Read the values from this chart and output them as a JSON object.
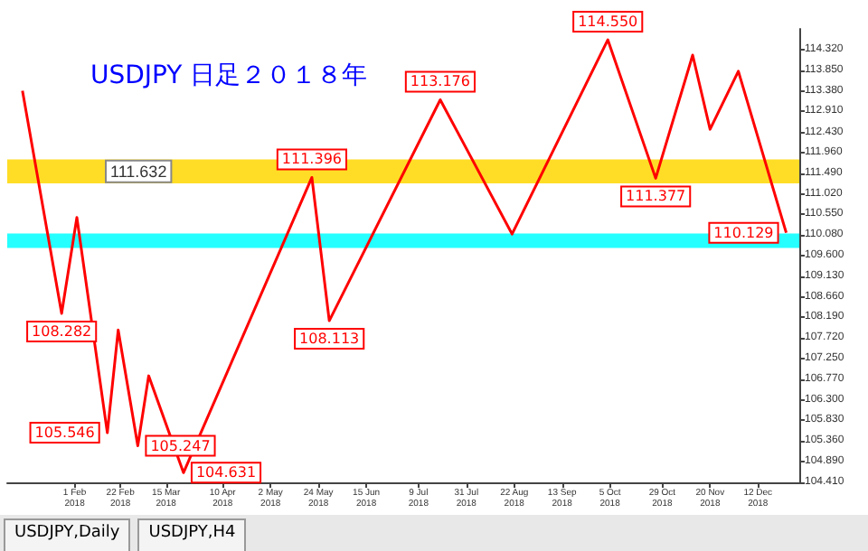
{
  "chart_data": {
    "type": "line",
    "title": "USDJPY 日足２０１８年",
    "annotations": [
      "USDJPY,Daily",
      "USDJPY,H4"
    ],
    "x": [
      "2018-01-08",
      "2018-01-26",
      "2018-02-02",
      "2018-02-16",
      "2018-02-21",
      "2018-03-02",
      "2018-03-07",
      "2018-03-23",
      "2018-05-21",
      "2018-05-29",
      "2018-07-19",
      "2018-08-21",
      "2018-10-04",
      "2018-10-26",
      "2018-11-12",
      "2018-11-20",
      "2018-12-03",
      "2018-12-25"
    ],
    "series": [
      {
        "color": "#ff0000",
        "values": [
          113.38,
          108.282,
          110.48,
          105.546,
          107.9,
          105.247,
          106.85,
          104.631,
          111.396,
          108.113,
          113.176,
          110.1,
          114.55,
          111.377,
          114.2,
          112.5,
          113.83,
          110.129
        ],
        "value_labels": [
          null,
          "108.282",
          null,
          "105.546",
          null,
          "105.247",
          null,
          "104.631",
          "111.396",
          "108.113",
          "113.176",
          null,
          "114.550",
          "111.377",
          null,
          null,
          null,
          "110.129"
        ]
      }
    ],
    "bands": [
      {
        "axis": "y",
        "from": 111.26,
        "to": 111.81,
        "color": "#ffd700",
        "label": "111.632"
      },
      {
        "axis": "y",
        "from": 109.78,
        "to": 110.11,
        "color": "#00ffff"
      }
    ],
    "xlim": [
      "2018-01-01",
      "2018-12-31"
    ],
    "xticks": [
      {
        "value": "2018-02-01",
        "label": "1 Feb 2018"
      },
      {
        "value": "2018-02-22",
        "label": "22 Feb 2018"
      },
      {
        "value": "2018-03-15",
        "label": "15 Mar 2018"
      },
      {
        "value": "2018-04-10",
        "label": "10 Apr 2018"
      },
      {
        "value": "2018-05-02",
        "label": "2 May 2018"
      },
      {
        "value": "2018-05-24",
        "label": "24 May 2018"
      },
      {
        "value": "2018-06-15",
        "label": "15 Jun 2018"
      },
      {
        "value": "2018-07-09",
        "label": "9 Jul 2018"
      },
      {
        "value": "2018-07-31",
        "label": "31 Jul 2018"
      },
      {
        "value": "2018-08-22",
        "label": "22 Aug 2018"
      },
      {
        "value": "2018-09-13",
        "label": "13 Sep 2018"
      },
      {
        "value": "2018-10-05",
        "label": "5 Oct 2018"
      },
      {
        "value": "2018-10-29",
        "label": "29 Oct 2018"
      },
      {
        "value": "2018-11-20",
        "label": "20 Nov 2018"
      },
      {
        "value": "2018-12-12",
        "label": "12 Dec 2018"
      }
    ],
    "ylim": [
      104.41,
      114.8
    ],
    "yticks": [
      {
        "value": 104.41,
        "label": "104.410"
      },
      {
        "value": 104.89,
        "label": "104.890"
      },
      {
        "value": 105.36,
        "label": "105.360"
      },
      {
        "value": 105.83,
        "label": "105.830"
      },
      {
        "value": 106.3,
        "label": "106.300"
      },
      {
        "value": 106.77,
        "label": "106.770"
      },
      {
        "value": 107.25,
        "label": "107.250"
      },
      {
        "value": 107.72,
        "label": "107.720"
      },
      {
        "value": 108.19,
        "label": "108.190"
      },
      {
        "value": 108.66,
        "label": "108.660"
      },
      {
        "value": 109.13,
        "label": "109.130"
      },
      {
        "value": 109.6,
        "label": "109.600"
      },
      {
        "value": 110.08,
        "label": "110.080"
      },
      {
        "value": 110.55,
        "label": "110.550"
      },
      {
        "value": 111.02,
        "label": "111.020"
      },
      {
        "value": 111.49,
        "label": "111.490"
      },
      {
        "value": 111.96,
        "label": "111.960"
      },
      {
        "value": 112.43,
        "label": "112.430"
      },
      {
        "value": 112.91,
        "label": "112.910"
      },
      {
        "value": 113.38,
        "label": "113.380"
      },
      {
        "value": 113.85,
        "label": "113.850"
      },
      {
        "value": 114.32,
        "label": "114.320"
      }
    ],
    "marker": "none"
  }
}
